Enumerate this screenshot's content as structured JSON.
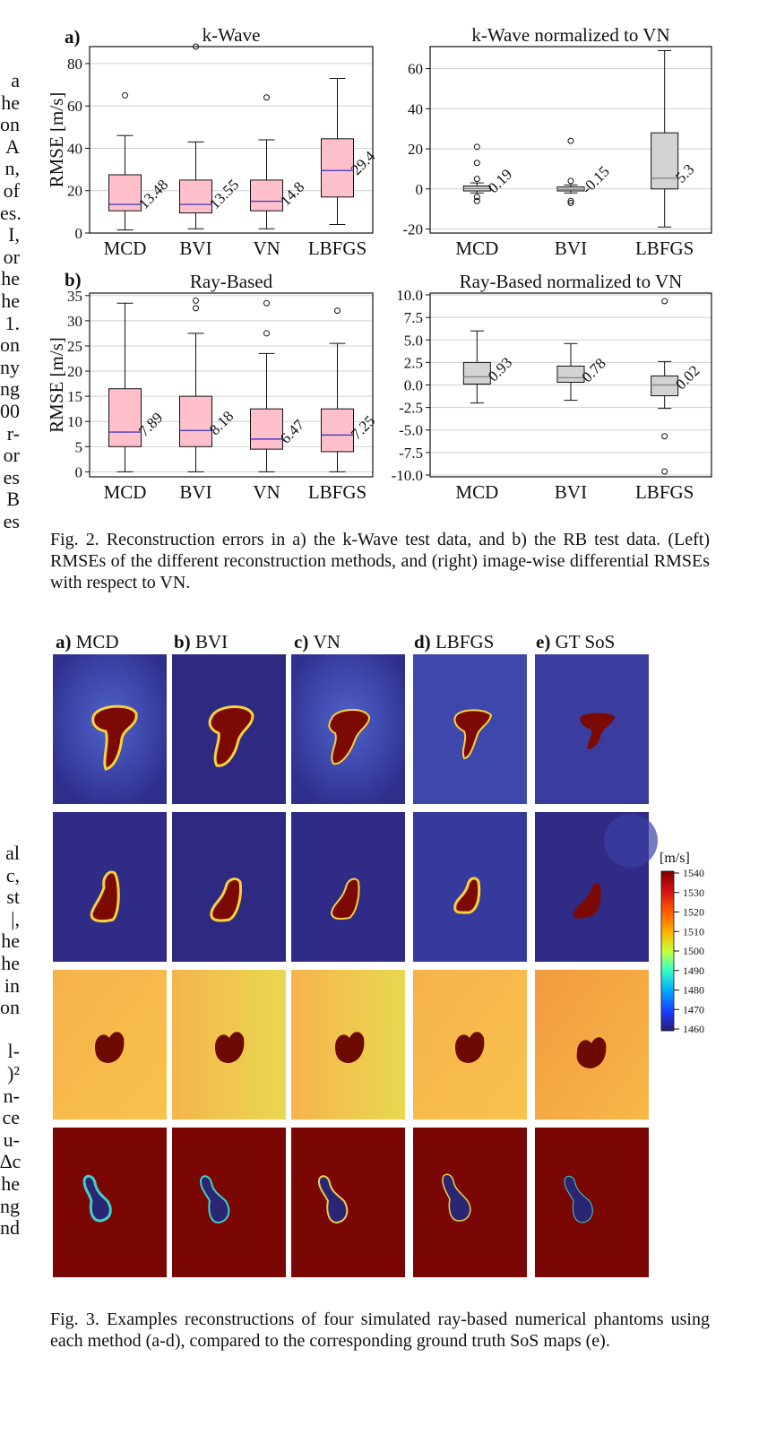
{
  "margin_text": {
    "top": [
      " a",
      "he",
      "on",
      "A",
      "n,",
      "of",
      "es.",
      "I,",
      "or",
      "he",
      "he",
      "1.",
      "on",
      "ny",
      "ng",
      "00",
      "r-",
      "or",
      "es",
      "B",
      "es"
    ],
    "bottom": [
      "al",
      "c,",
      "st",
      "|,",
      "he",
      "he",
      "in",
      "on",
      "",
      "l-",
      ")²",
      "n-",
      "ce",
      "u-",
      "∆c",
      "he",
      "ng",
      "nd"
    ]
  },
  "fig2": {
    "caption": "Fig. 2.  Reconstruction errors in a) the k-Wave test data, and b) the RB test data. (Left) RMSEs of the different reconstruction methods, and (right) image-wise differential RMSEs with respect to VN.",
    "panel_a_label": "a)",
    "panel_b_label": "b)"
  },
  "fig3": {
    "caption": "Fig. 3.  Examples reconstructions of four simulated ray-based numerical phantoms using each method (a-d), compared to the corresponding ground truth SoS maps (e).",
    "column_headers": [
      {
        "letter": "a)",
        "name": "MCD"
      },
      {
        "letter": "b)",
        "name": "BVI"
      },
      {
        "letter": "c)",
        "name": "VN"
      },
      {
        "letter": "d)",
        "name": "LBFGS"
      },
      {
        "letter": "e)",
        "name": "GT SoS"
      }
    ],
    "colorbar": {
      "unit": "[m/s]",
      "ticks": [
        "1540",
        "1530",
        "1520",
        "1510",
        "1500",
        "1490",
        "1480",
        "1470",
        "1460"
      ]
    }
  },
  "chart_data": [
    {
      "type": "box",
      "title": "k-Wave",
      "ylabel": "RMSE [m/s]",
      "ylim": [
        0,
        88
      ],
      "yticks": [
        0,
        20,
        40,
        60,
        80
      ],
      "categories": [
        "MCD",
        "BVI",
        "VN",
        "LBFGS"
      ],
      "boxes": [
        {
          "whislo": 1.5,
          "q1": 10.5,
          "med": 13.5,
          "q3": 27.5,
          "whishi": 46,
          "fliers": [
            65
          ],
          "label": "13.48"
        },
        {
          "whislo": 2,
          "q1": 9.5,
          "med": 13.5,
          "q3": 25,
          "whishi": 43,
          "fliers": [
            88
          ],
          "label": "13.55"
        },
        {
          "whislo": 2,
          "q1": 10.5,
          "med": 15,
          "q3": 25,
          "whishi": 44,
          "fliers": [
            64
          ],
          "label": "14.8"
        },
        {
          "whislo": 4,
          "q1": 17,
          "med": 29.5,
          "q3": 44.5,
          "whishi": 73,
          "fliers": [],
          "label": "29.4"
        }
      ]
    },
    {
      "type": "box",
      "title": "k-Wave normalized to VN",
      "ylim": [
        -22,
        71
      ],
      "yticks": [
        -20,
        0,
        20,
        40,
        60
      ],
      "categories": [
        "MCD",
        "BVI",
        "LBFGS"
      ],
      "boxes": [
        {
          "whislo": -2,
          "q1": -1,
          "med": 0.2,
          "q3": 1.5,
          "whishi": 3,
          "fliers": [
            21,
            13,
            5,
            -4,
            -6
          ],
          "label": "0.19"
        },
        {
          "whislo": -2,
          "q1": -1,
          "med": -0.2,
          "q3": 1,
          "whishi": 2,
          "fliers": [
            24,
            4,
            -6,
            -7
          ],
          "label": "-0.15"
        },
        {
          "whislo": -19,
          "q1": 0,
          "med": 5.3,
          "q3": 28,
          "whishi": 69,
          "fliers": [],
          "label": "5.3"
        }
      ]
    },
    {
      "type": "box",
      "title": "Ray-Based",
      "ylabel": "RMSE [m/s]",
      "ylim": [
        -1,
        35.5
      ],
      "yticks": [
        0,
        5,
        10,
        15,
        20,
        25,
        30,
        35
      ],
      "categories": [
        "MCD",
        "BVI",
        "VN",
        "LBFGS"
      ],
      "boxes": [
        {
          "whislo": 0,
          "q1": 5,
          "med": 7.9,
          "q3": 16.5,
          "whishi": 33.5,
          "fliers": [],
          "label": "7.89"
        },
        {
          "whislo": 0,
          "q1": 5,
          "med": 8.2,
          "q3": 15,
          "whishi": 27.5,
          "fliers": [
            34,
            32.5
          ],
          "label": "8.18"
        },
        {
          "whislo": 0,
          "q1": 4.5,
          "med": 6.5,
          "q3": 12.5,
          "whishi": 23.5,
          "fliers": [
            33.5,
            27.5
          ],
          "label": "6.47"
        },
        {
          "whislo": 0,
          "q1": 4,
          "med": 7.3,
          "q3": 12.5,
          "whishi": 25.5,
          "fliers": [
            32
          ],
          "label": "7.25"
        }
      ]
    },
    {
      "type": "box",
      "title": "Ray-Based normalized to VN",
      "ylim": [
        -10.2,
        10.2
      ],
      "yticks": [
        10.0,
        7.5,
        5.0,
        2.5,
        0.0,
        -2.5,
        -5.0,
        -7.5,
        -10.0
      ],
      "ytick_labels": [
        "10.0",
        "7.5",
        "5.0",
        "2.5",
        "0.0",
        "-2.5",
        "-5.0",
        "-7.5",
        "-10.0"
      ],
      "categories": [
        "MCD",
        "BVI",
        "LBFGS"
      ],
      "boxes": [
        {
          "whislo": -2,
          "q1": 0.1,
          "med": 0.9,
          "q3": 2.5,
          "whishi": 6,
          "fliers": [],
          "label": "0.93"
        },
        {
          "whislo": -1.7,
          "q1": 0.3,
          "med": 0.8,
          "q3": 2.1,
          "whishi": 4.6,
          "fliers": [],
          "label": "0.78"
        },
        {
          "whislo": -2.6,
          "q1": -1.2,
          "med": 0,
          "q3": 1,
          "whishi": 2.6,
          "fliers": [
            9.3,
            -5.7,
            -9.6
          ],
          "label": "0.02"
        }
      ]
    }
  ]
}
